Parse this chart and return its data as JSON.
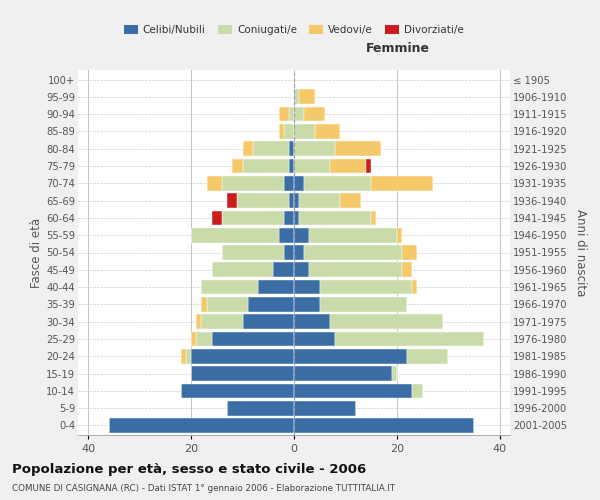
{
  "age_groups": [
    "0-4",
    "5-9",
    "10-14",
    "15-19",
    "20-24",
    "25-29",
    "30-34",
    "35-39",
    "40-44",
    "45-49",
    "50-54",
    "55-59",
    "60-64",
    "65-69",
    "70-74",
    "75-79",
    "80-84",
    "85-89",
    "90-94",
    "95-99",
    "100+"
  ],
  "birth_years": [
    "2001-2005",
    "1996-2000",
    "1991-1995",
    "1986-1990",
    "1981-1985",
    "1976-1980",
    "1971-1975",
    "1966-1970",
    "1961-1965",
    "1956-1960",
    "1951-1955",
    "1946-1950",
    "1941-1945",
    "1936-1940",
    "1931-1935",
    "1926-1930",
    "1921-1925",
    "1916-1920",
    "1911-1915",
    "1906-1910",
    "≤ 1905"
  ],
  "male": {
    "celibi": [
      36,
      13,
      22,
      20,
      20,
      16,
      10,
      9,
      7,
      4,
      2,
      3,
      2,
      1,
      2,
      1,
      1,
      0,
      0,
      0,
      0
    ],
    "coniugati": [
      0,
      0,
      0,
      0,
      1,
      3,
      8,
      8,
      11,
      12,
      12,
      17,
      12,
      10,
      12,
      9,
      7,
      2,
      1,
      0,
      0
    ],
    "vedovi": [
      0,
      0,
      0,
      0,
      1,
      1,
      1,
      1,
      0,
      0,
      0,
      0,
      0,
      0,
      3,
      2,
      2,
      1,
      2,
      0,
      0
    ],
    "divorziati": [
      0,
      0,
      0,
      0,
      0,
      0,
      0,
      0,
      0,
      0,
      0,
      0,
      2,
      2,
      0,
      0,
      0,
      0,
      0,
      0,
      0
    ]
  },
  "female": {
    "nubili": [
      35,
      12,
      23,
      19,
      22,
      8,
      7,
      5,
      5,
      3,
      2,
      3,
      1,
      1,
      2,
      0,
      0,
      0,
      0,
      0,
      0
    ],
    "coniugate": [
      0,
      0,
      2,
      1,
      8,
      29,
      22,
      17,
      18,
      18,
      19,
      17,
      14,
      8,
      13,
      7,
      8,
      4,
      2,
      1,
      0
    ],
    "vedove": [
      0,
      0,
      0,
      0,
      0,
      0,
      0,
      0,
      1,
      2,
      3,
      1,
      1,
      4,
      12,
      7,
      9,
      5,
      4,
      3,
      0
    ],
    "divorziate": [
      0,
      0,
      0,
      0,
      0,
      0,
      0,
      0,
      0,
      0,
      0,
      0,
      0,
      0,
      0,
      1,
      0,
      0,
      0,
      0,
      0
    ]
  },
  "colors": {
    "celibi": "#3a6ea5",
    "coniugati": "#c8dba8",
    "vedovi": "#f5c96a",
    "divorziati": "#cc1c1c"
  },
  "xlim": 42,
  "title": "Popolazione per età, sesso e stato civile - 2006",
  "subtitle": "COMUNE DI CASIGNANA (RC) - Dati ISTAT 1° gennaio 2006 - Elaborazione TUTTITALIA.IT",
  "ylabel_left": "Fasce di età",
  "ylabel_right": "Anni di nascita",
  "xlabel_right": "Femmine",
  "bg_color": "#f0f0f0",
  "plot_bg": "#ffffff"
}
